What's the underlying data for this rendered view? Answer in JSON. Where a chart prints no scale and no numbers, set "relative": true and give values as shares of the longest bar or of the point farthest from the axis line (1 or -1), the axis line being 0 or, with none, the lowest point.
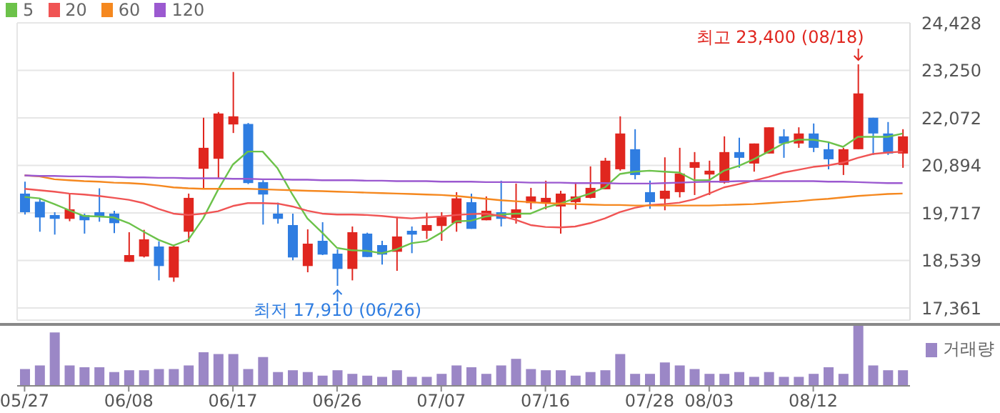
{
  "chart_data": [
    {
      "type": "candlestick",
      "categories": [
        "05/27",
        null,
        null,
        null,
        null,
        null,
        null,
        "06/08",
        null,
        null,
        null,
        null,
        null,
        null,
        "06/17",
        null,
        null,
        null,
        null,
        null,
        null,
        "06/26",
        null,
        null,
        null,
        null,
        null,
        null,
        "07/07",
        null,
        null,
        null,
        null,
        null,
        null,
        "07/16",
        null,
        null,
        null,
        null,
        null,
        null,
        "07/28",
        null,
        null,
        null,
        "08/03",
        null,
        null,
        null,
        null,
        null,
        null,
        "08/12",
        null,
        null,
        null,
        null,
        null,
        null
      ],
      "ohlc": [
        [
          20196,
          20492,
          19676,
          19735
        ],
        [
          19995,
          20054,
          19251,
          19605
        ],
        [
          19665,
          19735,
          19180,
          19570
        ],
        [
          19570,
          20196,
          19511,
          19806
        ],
        [
          19665,
          19700,
          19204,
          19535
        ],
        [
          19735,
          20327,
          19499,
          19629
        ],
        [
          19700,
          19771,
          19215,
          19463
        ],
        [
          18506,
          19239,
          18506,
          18672
        ],
        [
          18636,
          19298,
          18613,
          19062
        ],
        [
          18884,
          19014,
          18045,
          18400
        ],
        [
          18116,
          18908,
          18010,
          18884
        ],
        [
          19251,
          20196,
          18991,
          20090
        ],
        [
          20811,
          22076,
          20338,
          21331
        ],
        [
          21059,
          22218,
          20587,
          22182
        ],
        [
          21910,
          23211,
          21698,
          22111
        ],
        [
          21922,
          21946,
          20433,
          20457
        ],
        [
          20480,
          20527,
          19428,
          20173
        ],
        [
          19700,
          19972,
          19452,
          19570
        ],
        [
          19416,
          19700,
          18542,
          18613
        ],
        [
          18400,
          19310,
          18246,
          18955
        ],
        [
          19026,
          19487,
          18672,
          18684
        ],
        [
          18707,
          18814,
          17910,
          18329
        ],
        [
          18329,
          19381,
          18045,
          19239
        ],
        [
          19204,
          19227,
          18624,
          18624
        ],
        [
          18920,
          19026,
          18435,
          18684
        ],
        [
          18754,
          19629,
          18281,
          19133
        ],
        [
          19274,
          19381,
          18719,
          19180
        ],
        [
          19274,
          19724,
          19073,
          19416
        ],
        [
          19393,
          19735,
          19026,
          19617
        ],
        [
          19463,
          20232,
          19251,
          20078
        ],
        [
          19984,
          20196,
          19322,
          19322
        ],
        [
          19535,
          20126,
          19535,
          19771
        ],
        [
          19735,
          20516,
          19381,
          19570
        ],
        [
          19594,
          20445,
          19452,
          19806
        ],
        [
          19960,
          20338,
          19806,
          20126
        ],
        [
          19948,
          20516,
          19806,
          20090
        ],
        [
          19877,
          20267,
          19204,
          20196
        ],
        [
          19984,
          20480,
          19806,
          20126
        ],
        [
          20090,
          20870,
          20078,
          20338
        ],
        [
          20303,
          21083,
          20303,
          21012
        ],
        [
          20799,
          22111,
          20764,
          21686
        ],
        [
          21296,
          21792,
          20551,
          20657
        ],
        [
          20232,
          20516,
          19818,
          19984
        ],
        [
          20066,
          21095,
          19783,
          20267
        ],
        [
          20232,
          21331,
          20102,
          20693
        ],
        [
          20835,
          21225,
          20161,
          20977
        ],
        [
          20669,
          21012,
          20161,
          20764
        ],
        [
          20468,
          21615,
          20445,
          21225
        ],
        [
          21225,
          21579,
          20835,
          21083
        ],
        [
          20941,
          21438,
          20740,
          21438
        ],
        [
          21189,
          21839,
          21189,
          21839
        ],
        [
          21615,
          21792,
          21083,
          21438
        ],
        [
          21438,
          21839,
          21331,
          21686
        ],
        [
          21686,
          21934,
          21225,
          21331
        ],
        [
          21296,
          21473,
          20799,
          21047
        ],
        [
          20906,
          21331,
          20657,
          21296
        ],
        [
          21296,
          23400,
          21296,
          22679
        ],
        [
          22076,
          22076,
          21154,
          21686
        ],
        [
          21686,
          21970,
          21154,
          21189
        ],
        [
          21189,
          21792,
          20835,
          21615
        ]
      ],
      "series": [
        {
          "type": "line",
          "name": "5",
          "color": "#6cc24a",
          "values": [
            20114,
            20078,
            19936,
            19783,
            19641,
            19629,
            19605,
            19464,
            19251,
            19050,
            18908,
            19050,
            19582,
            20291,
            20917,
            21237,
            21237,
            20823,
            20173,
            19582,
            19227,
            18849,
            18790,
            18778,
            18719,
            18814,
            18967,
            19014,
            19227,
            19511,
            19523,
            19629,
            19676,
            19700,
            19700,
            19853,
            19948,
            20078,
            20197,
            20350,
            20681,
            20740,
            20764,
            20740,
            20717,
            20527,
            20527,
            20764,
            20882,
            21047,
            21237,
            21438,
            21532,
            21532,
            21473,
            21355,
            21603,
            21603,
            21603,
            21686
          ]
        },
        {
          "type": "line",
          "name": "20",
          "color": "#f05454",
          "values": [
            20315,
            20279,
            20244,
            20197,
            20173,
            20137,
            20090,
            20043,
            19960,
            19818,
            19700,
            19665,
            19700,
            19759,
            19889,
            19960,
            19960,
            19948,
            19877,
            19771,
            19700,
            19676,
            19676,
            19665,
            19641,
            19605,
            19582,
            19605,
            19629,
            19665,
            19688,
            19700,
            19641,
            19546,
            19416,
            19369,
            19357,
            19381,
            19464,
            19582,
            19735,
            19842,
            19913,
            19936,
            19972,
            20055,
            20197,
            20350,
            20433,
            20516,
            20610,
            20717,
            20787,
            20858,
            20894,
            20965,
            21083,
            21178,
            21213,
            21237
          ]
        },
        {
          "type": "line",
          "name": "60",
          "color": "#f5881f",
          "values": [
            20646,
            20622,
            20551,
            20527,
            20504,
            20492,
            20468,
            20457,
            20433,
            20397,
            20350,
            20327,
            20315,
            20315,
            20315,
            20315,
            20303,
            20291,
            20279,
            20267,
            20256,
            20244,
            20232,
            20220,
            20208,
            20197,
            20185,
            20173,
            20161,
            20137,
            20102,
            20066,
            20031,
            20007,
            19984,
            19960,
            19948,
            19936,
            19925,
            19913,
            19913,
            19901,
            19901,
            19901,
            19901,
            19901,
            19901,
            19913,
            19925,
            19936,
            19960,
            19984,
            20007,
            20043,
            20066,
            20102,
            20137,
            20161,
            20185,
            20197
          ]
        },
        {
          "type": "line",
          "name": "120",
          "color": "#9b59d0",
          "values": [
            20646,
            20634,
            20634,
            20622,
            20622,
            20610,
            20610,
            20598,
            20598,
            20587,
            20587,
            20575,
            20575,
            20575,
            20563,
            20563,
            20551,
            20551,
            20539,
            20539,
            20527,
            20527,
            20527,
            20516,
            20516,
            20504,
            20504,
            20504,
            20492,
            20492,
            20492,
            20480,
            20480,
            20480,
            20468,
            20468,
            20468,
            20457,
            20457,
            20457,
            20445,
            20445,
            20445,
            20457,
            20468,
            20480,
            20492,
            20492,
            20504,
            20504,
            20504,
            20504,
            20504,
            20504,
            20492,
            20492,
            20480,
            20468,
            20457,
            20457
          ]
        }
      ],
      "ylim": [
        17060,
        24428
      ],
      "yticks": [
        {
          "value": 17361,
          "label": "17,361"
        },
        {
          "value": 18539,
          "label": "18,539"
        },
        {
          "value": 19717,
          "label": "19,717"
        },
        {
          "value": 20894,
          "label": "20,894"
        },
        {
          "value": 22072,
          "label": "22,072"
        },
        {
          "value": 23250,
          "label": "23,250"
        },
        {
          "value": 24428,
          "label": "24,428"
        }
      ],
      "grid": true,
      "legend": "top left",
      "tick_labels": "y",
      "annotations": [
        "최고 23,400 (08/18)",
        {
          "text": "최저 17,910 (06/26)",
          "x": "06/26",
          "y": 17910
        }
      ]
    },
    {
      "type": "bar",
      "relative": true,
      "categories": [
        "05/27",
        null,
        null,
        null,
        null,
        null,
        null,
        "06/08",
        null,
        null,
        null,
        null,
        null,
        null,
        "06/17",
        null,
        null,
        null,
        null,
        null,
        null,
        "06/26",
        null,
        null,
        null,
        null,
        null,
        null,
        "07/07",
        null,
        null,
        null,
        null,
        null,
        null,
        "07/16",
        null,
        null,
        null,
        null,
        null,
        null,
        "07/28",
        null,
        null,
        null,
        "08/03",
        null,
        null,
        null,
        null,
        null,
        null,
        "08/12",
        null,
        null,
        null,
        null,
        null,
        null
      ],
      "series": [
        {
          "name": "거래량",
          "color": "#9b87c6",
          "values": [
            0.28,
            0.34,
            0.89,
            0.34,
            0.31,
            0.31,
            0.23,
            0.26,
            0.26,
            0.28,
            0.28,
            0.34,
            0.56,
            0.53,
            0.53,
            0.28,
            0.48,
            0.23,
            0.26,
            0.23,
            0.17,
            0.26,
            0.2,
            0.17,
            0.15,
            0.26,
            0.15,
            0.15,
            0.2,
            0.34,
            0.31,
            0.2,
            0.34,
            0.45,
            0.28,
            0.26,
            0.26,
            0.17,
            0.23,
            0.26,
            0.53,
            0.2,
            0.2,
            0.39,
            0.34,
            0.28,
            0.2,
            0.2,
            0.23,
            0.15,
            0.23,
            0.15,
            0.15,
            0.2,
            0.31,
            0.2,
            1,
            0.34,
            0.26,
            0.26
          ]
        }
      ],
      "legend": "top right",
      "tick_labels": "x"
    }
  ]
}
